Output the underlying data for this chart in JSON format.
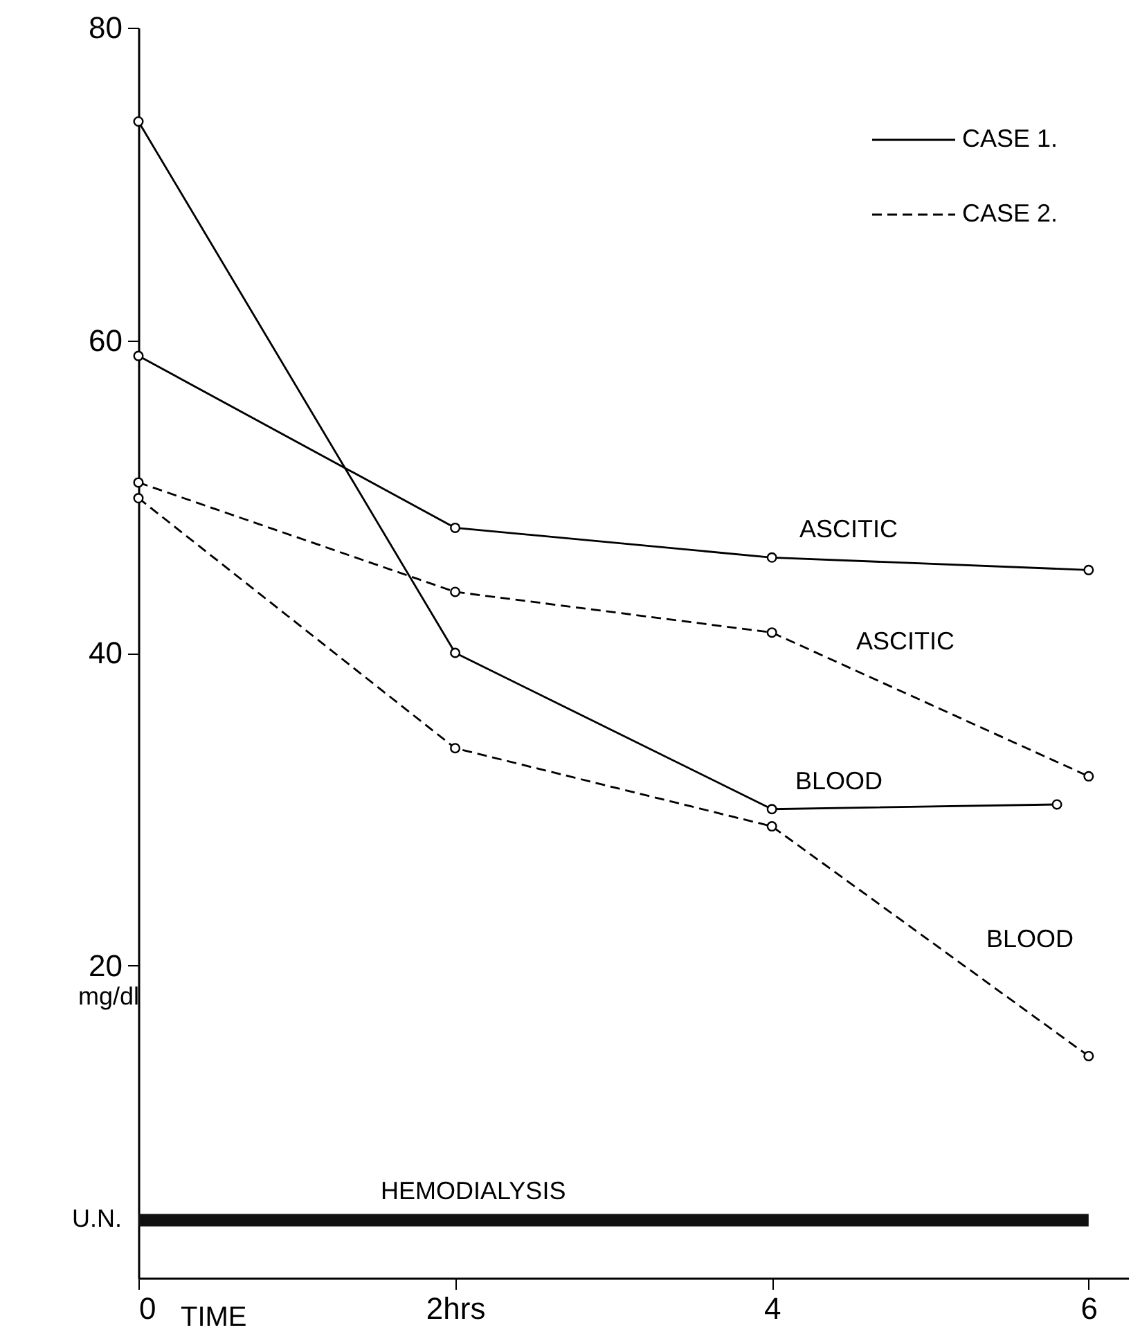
{
  "chart_data": {
    "type": "line",
    "xlabel": "TIME",
    "ylabel": "mg/dl",
    "x": [
      0,
      2,
      4,
      6
    ],
    "series": [
      {
        "name": "CASE 1.",
        "color": "#000000",
        "line_style": "solid",
        "values": [
          59,
          48,
          46.1,
          45.3
        ]
      },
      {
        "name": "CASE 2.",
        "color": "#000000",
        "line_style": "dashed",
        "values": [
          50.9,
          43.9,
          41.3,
          32.1
        ]
      },
      {
        "color": "#000000",
        "line_style": "solid",
        "x": [
          0,
          2,
          4,
          5.8
        ],
        "values": [
          74,
          40,
          30,
          30.3
        ]
      },
      {
        "color": "#000000",
        "line_style": "dashed",
        "values": [
          49.9,
          33.9,
          28.9,
          14.2
        ]
      }
    ],
    "xlim": [
      0,
      6.25
    ],
    "ylim": [
      0,
      80
    ],
    "xticks": [
      0,
      {
        "value": 2,
        "label": "2hrs"
      },
      4,
      6
    ],
    "yticks": [
      20,
      40,
      60,
      80
    ],
    "ref_lines": [
      {
        "axis": "y",
        "value": 3.7,
        "label": "HEMODIALYSIS",
        "color": "#111111"
      }
    ],
    "annotations": [
      "ASCITIC",
      "ASCITIC",
      "BLOOD",
      "BLOOD",
      "U.N."
    ],
    "marker": "circle",
    "legend": "top right",
    "grid": false
  }
}
